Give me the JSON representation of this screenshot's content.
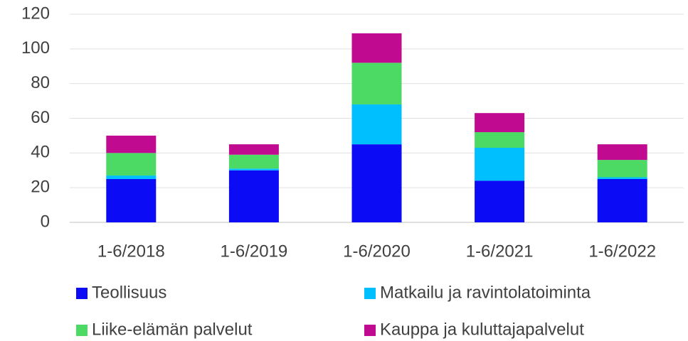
{
  "chart_data": {
    "type": "stacked_bar",
    "categories": [
      "1-6/2018",
      "1-6/2019",
      "1-6/2020",
      "1-6/2021",
      "1-6/2022"
    ],
    "series": [
      {
        "name": "Teollisuus",
        "color": "#0b0bf5",
        "values": [
          25,
          30,
          45,
          24,
          25
        ]
      },
      {
        "name": "Matkailu ja ravintolatoiminta",
        "color": "#00bfff",
        "values": [
          2,
          1,
          23,
          19,
          1
        ]
      },
      {
        "name": "Liike-elämän palvelut",
        "color": "#4cd964",
        "values": [
          13,
          8,
          24,
          9,
          10
        ]
      },
      {
        "name": "Kauppa ja kuluttajapalvelut",
        "color": "#c00a8f",
        "values": [
          10,
          6,
          17,
          11,
          9
        ]
      }
    ],
    "ylim": [
      0,
      120
    ],
    "yticks": [
      0,
      20,
      40,
      60,
      80,
      100,
      120
    ],
    "grid": true,
    "legend": "bottom"
  }
}
